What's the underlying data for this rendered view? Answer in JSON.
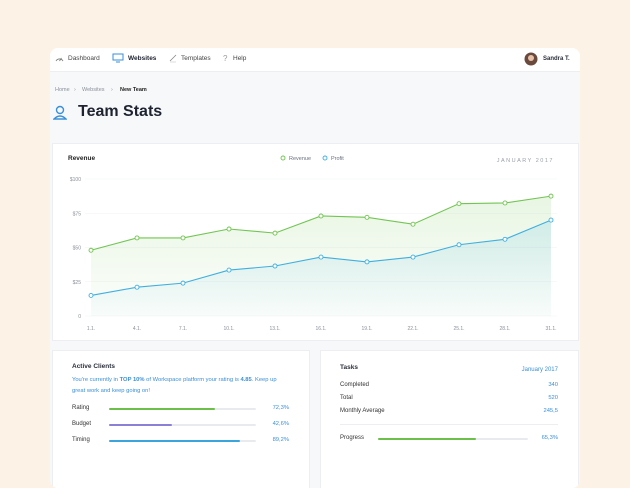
{
  "nav": {
    "items": [
      "Dashboard",
      "Websites",
      "Templates",
      "Help"
    ],
    "active_index": 1,
    "user": "Sandra T."
  },
  "breadcrumb": [
    "Home",
    "Websites",
    "New Team"
  ],
  "page_title": "Team Stats",
  "chart_data": {
    "type": "line",
    "title": "Revenue",
    "subtitle": "JANUARY 2017",
    "categories": [
      "1.1.",
      "4.1.",
      "7.1.",
      "10.1.",
      "13.1.",
      "16.1.",
      "19.1.",
      "22.1.",
      "25.1.",
      "28.1.",
      "31.1."
    ],
    "series": [
      {
        "name": "Revenue",
        "color": "#72c552",
        "values": [
          48,
          57,
          57,
          63.5,
          60.5,
          73,
          72,
          67,
          82,
          82.5,
          87.5
        ]
      },
      {
        "name": "Profit",
        "color": "#3fafdf",
        "values": [
          15,
          21,
          24,
          33.5,
          36.5,
          43,
          39.5,
          43,
          52,
          56,
          70
        ]
      }
    ],
    "ylim": [
      0,
      100
    ],
    "yticks": [
      0,
      {
        "value": 25,
        "label": "$25"
      },
      {
        "value": 50,
        "label": "$50"
      },
      {
        "value": 75,
        "label": "$75"
      },
      {
        "value": 100,
        "label": "$100"
      }
    ],
    "grid": true
  },
  "active_clients": {
    "title": "Active Clients",
    "text": [
      {
        "text": "You're currently in ",
        "bold": false
      },
      {
        "text": "TOP 10%",
        "bold": true
      },
      {
        "text": " of Workspace platform your rating is ",
        "bold": false
      },
      {
        "text": "4.85",
        "bold": true
      },
      {
        "text": ". Keep up great work and keep going on!",
        "bold": false
      }
    ],
    "xlim": [
      0,
      100
    ],
    "metrics": [
      {
        "name": "Rating",
        "value": 72.3,
        "value_label": "72,3%",
        "color": "#6cc04a"
      },
      {
        "name": "Budget",
        "value": 42.6,
        "value_label": "42,6%",
        "color": "#8b80d6"
      },
      {
        "name": "Timing",
        "value": 89.2,
        "value_label": "89,2%",
        "color": "#3aa4dc"
      }
    ]
  },
  "tasks": {
    "title": "Tasks",
    "period": "January 2017",
    "rows": [
      [
        "Completed",
        "340"
      ],
      [
        "Total",
        "520"
      ],
      [
        "Monthly Average",
        "245,5"
      ]
    ],
    "xlim": [
      0,
      100
    ],
    "progress": {
      "name": "Progress",
      "value": 65.3,
      "value_label": "65,3%",
      "color": "#6cc04a"
    }
  }
}
